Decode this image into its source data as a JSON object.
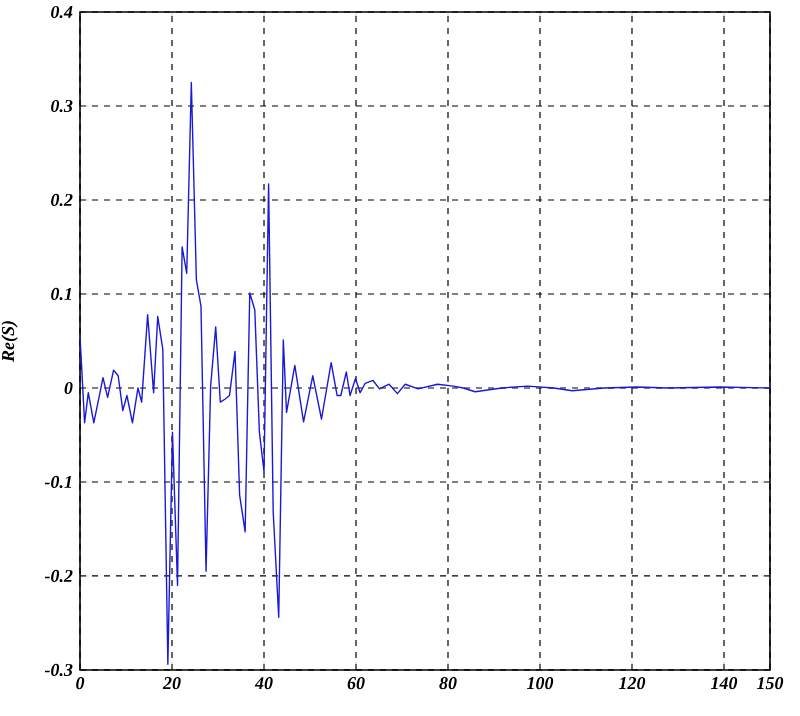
{
  "chart_data": {
    "type": "line",
    "ylabel": "*Re(S)*",
    "color": "#1a1ad6",
    "grid": true,
    "x": [
      0,
      1,
      1.8,
      3,
      5,
      6,
      7.3,
      8.3,
      9.3,
      10.2,
      11.4,
      12.6,
      13.4,
      14.7,
      16,
      16.9,
      18,
      19.1,
      20.1,
      21.2,
      22.2,
      23.2,
      24.2,
      25.3,
      26.3,
      27.4,
      28.4,
      29.5,
      30.5,
      31.5,
      32.5,
      33.7,
      34.7,
      35.9,
      36.9,
      38,
      39,
      40,
      41,
      42,
      43.2,
      44.2,
      44.9,
      46.7,
      48.6,
      50.6,
      52.5,
      54.6,
      55.9,
      56.7,
      57.9,
      58.7,
      59.9,
      60.9,
      62,
      63.7,
      65.1,
      67.2,
      69,
      70.7,
      73.5,
      77.7,
      81.2,
      83.3,
      85.9,
      91.7,
      97.3,
      103,
      107,
      114,
      121,
      128,
      139,
      150
    ],
    "values": [
      0.055,
      -0.037,
      -0.005,
      -0.037,
      0.011,
      -0.01,
      0.019,
      0.013,
      -0.024,
      -0.008,
      -0.037,
      0,
      -0.015,
      0.078,
      -0.005,
      0.076,
      0.041,
      -0.294,
      -0.047,
      -0.21,
      0.15,
      0.122,
      0.325,
      0.115,
      0.087,
      -0.195,
      0.002,
      0.065,
      -0.015,
      -0.012,
      -0.008,
      0.039,
      -0.114,
      -0.153,
      0.101,
      0.083,
      -0.047,
      -0.089,
      0.217,
      -0.132,
      -0.244,
      0.051,
      -0.026,
      0.024,
      -0.036,
      0.013,
      -0.033,
      0.027,
      -0.008,
      -0.008,
      0.017,
      -0.008,
      0.01,
      -0.005,
      0.005,
      0.008,
      -0.001,
      0.004,
      -0.006,
      0.004,
      -0.001,
      0.004,
      0.002,
      0,
      -0.004,
      0,
      0.002,
      0,
      -0.003,
      0,
      0.001,
      0,
      0.001,
      0
    ],
    "xlim": [
      0,
      150
    ],
    "ylim": [
      -0.3,
      0.4
    ],
    "xticks": [
      0,
      20,
      40,
      60,
      80,
      100,
      120,
      140,
      150
    ],
    "yticks": [
      -0.3,
      -0.2,
      -0.1,
      0,
      0.1,
      0.2,
      0.3,
      0.4
    ]
  }
}
